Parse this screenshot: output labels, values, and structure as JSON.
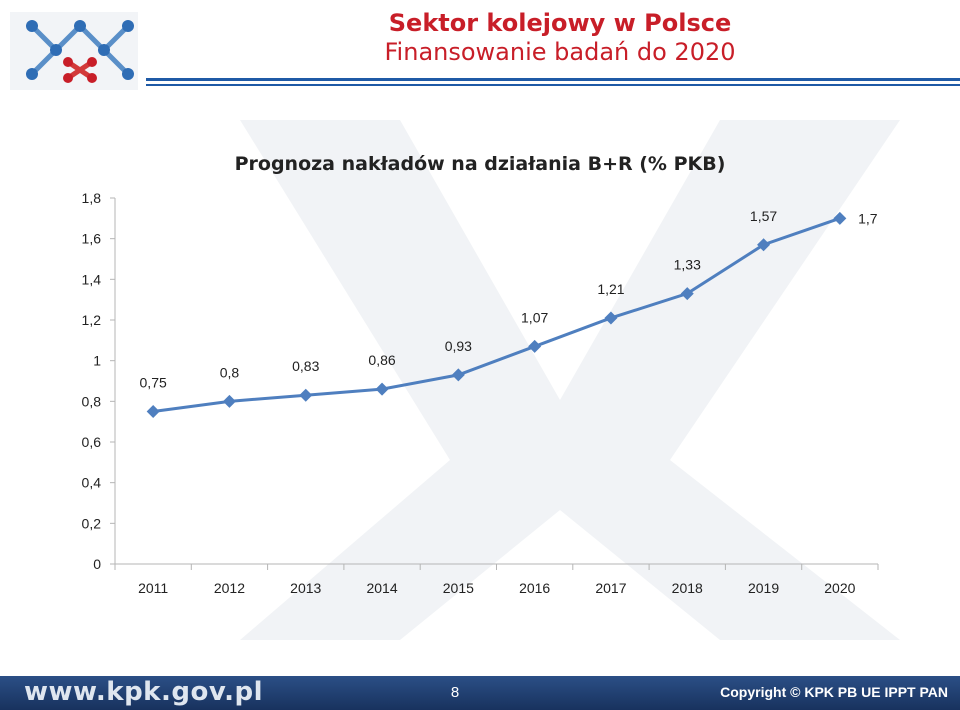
{
  "header": {
    "title": "Sektor kolejowy w Polsce",
    "subtitle": "Finansowanie badań do 2020"
  },
  "footer": {
    "url": "www.kpk.gov.pl",
    "page_number": "8",
    "copyright": "Copyright © KPK PB UE IPPT PAN"
  },
  "colors": {
    "title": "#c81e28",
    "rule": "#1f5aa6",
    "series": "#4f7fbf",
    "footer": "#1f3f73"
  },
  "chart_data": {
    "type": "line",
    "title": "Prognoza nakładów na działania B+R (% PKB)",
    "xlabel": "",
    "ylabel": "",
    "categories": [
      "2011",
      "2012",
      "2013",
      "2014",
      "2015",
      "2016",
      "2017",
      "2018",
      "2019",
      "2020"
    ],
    "values": [
      0.75,
      0.8,
      0.83,
      0.86,
      0.93,
      1.07,
      1.21,
      1.33,
      1.57,
      1.7
    ],
    "value_labels": [
      "0,75",
      "0,8",
      "0,83",
      "0,86",
      "0,93",
      "1,07",
      "1,21",
      "1,33",
      "1,57",
      "1,7"
    ],
    "ylim": [
      0,
      1.8
    ],
    "y_ticks": [
      0,
      0.2,
      0.4,
      0.6,
      0.8,
      1,
      1.2,
      1.4,
      1.6,
      1.8
    ],
    "y_tick_labels": [
      "0",
      "0,2",
      "0,4",
      "0,6",
      "0,8",
      "1",
      "1,2",
      "1,4",
      "1,6",
      "1,8"
    ],
    "grid": false,
    "marker": "diamond",
    "legend": "none"
  }
}
